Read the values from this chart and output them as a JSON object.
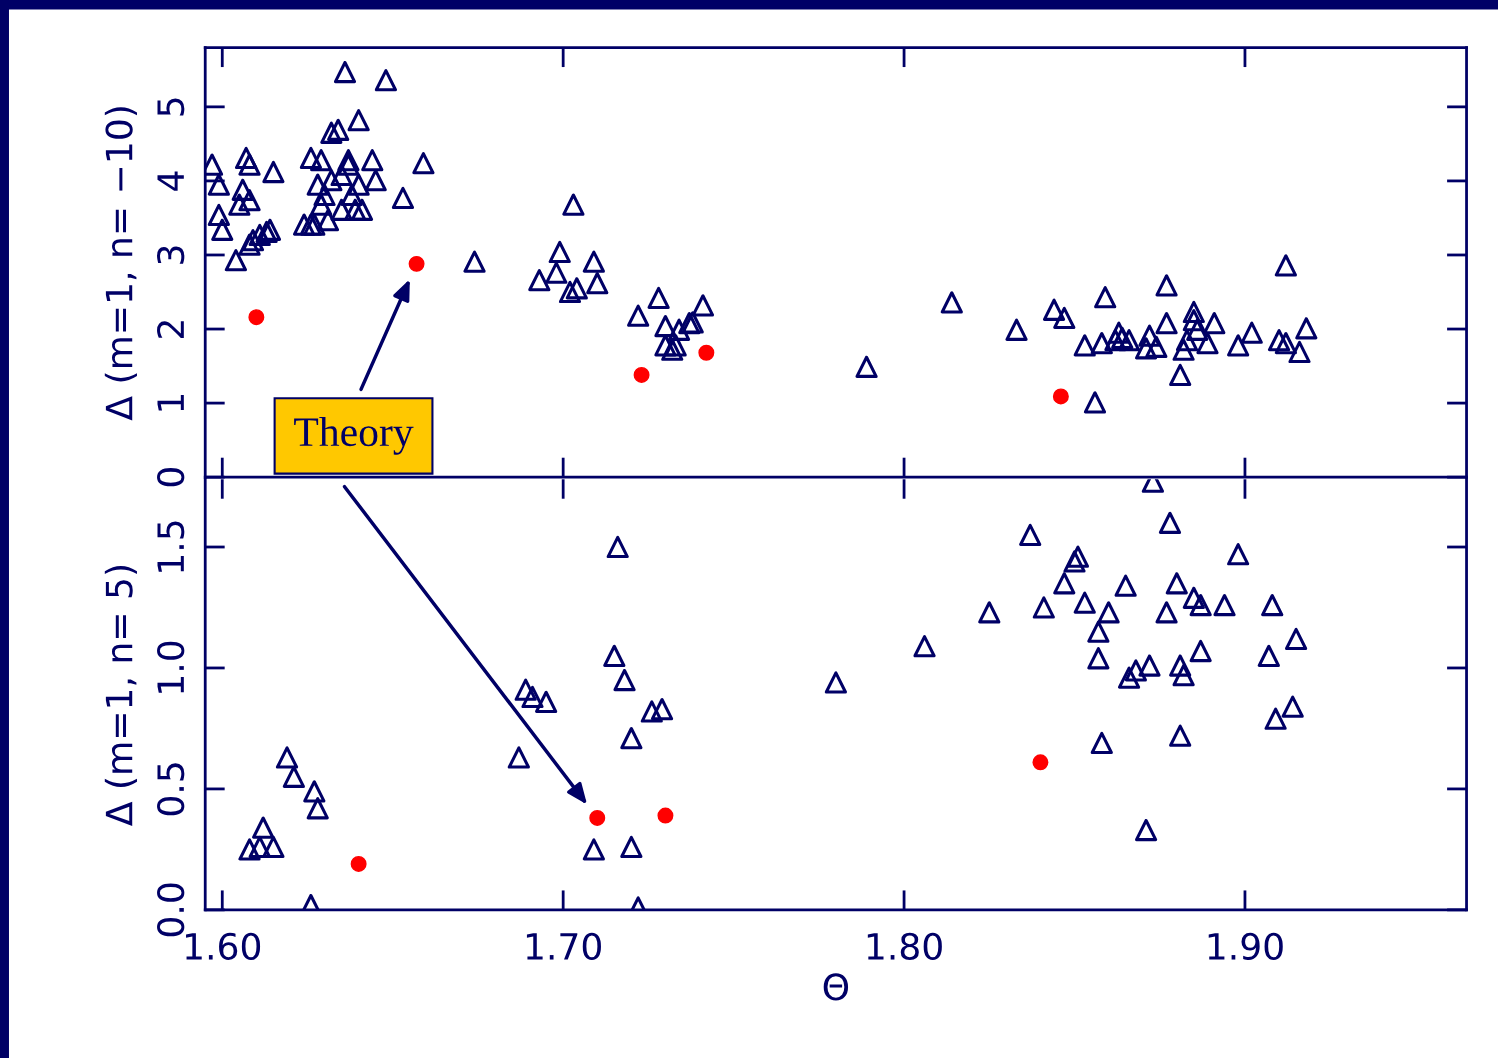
{
  "chart_data": [
    {
      "type": "scatter",
      "ylabel": "Δ (m=1, n= −10)",
      "xlim": [
        1.595,
        1.965
      ],
      "xticks": [
        {
          "value": 1.6,
          "label": null
        },
        {
          "value": 1.7,
          "label": null
        },
        {
          "value": 1.8,
          "label": null
        },
        {
          "value": 1.9,
          "label": null
        }
      ],
      "ylim": [
        0,
        5.8
      ],
      "yticks": [
        0,
        1,
        2,
        3,
        4,
        5
      ],
      "tick_labels": "y",
      "grid": false,
      "legend": false,
      "annotations": [
        "Theory"
      ],
      "series": [
        {
          "marker": "triangle",
          "color": "#000066",
          "x": [
            1.597,
            1.599,
            1.6,
            1.599,
            1.604,
            1.606,
            1.607,
            1.608,
            1.605,
            1.608,
            1.609,
            1.611,
            1.613,
            1.614,
            1.615,
            1.608,
            1.626,
            1.627,
            1.628,
            1.629,
            1.629,
            1.63,
            1.631,
            1.632,
            1.632,
            1.634,
            1.635,
            1.635,
            1.637,
            1.637,
            1.638,
            1.639,
            1.64,
            1.641,
            1.636,
            1.64,
            1.644,
            1.645,
            1.648,
            1.653,
            1.659,
            1.626,
            1.624,
            1.674,
            1.693,
            1.699,
            1.698,
            1.702,
            1.703,
            1.704,
            1.709,
            1.71,
            1.722,
            1.728,
            1.73,
            1.73,
            1.732,
            1.733,
            1.734,
            1.737,
            1.738,
            1.741,
            1.789,
            1.814,
            1.833,
            1.844,
            1.847,
            1.853,
            1.856,
            1.858,
            1.859,
            1.862,
            1.863,
            1.864,
            1.866,
            1.871,
            1.872,
            1.874,
            1.877,
            1.877,
            1.881,
            1.882,
            1.883,
            1.885,
            1.885,
            1.886,
            1.889,
            1.891,
            1.898,
            1.902,
            1.91,
            1.912,
            1.912,
            1.916,
            1.918
          ],
          "values": [
            4.22,
            3.95,
            3.34,
            3.54,
            2.93,
            3.88,
            4.31,
            4.22,
            3.68,
            3.74,
            3.2,
            3.27,
            3.31,
            3.34,
            4.12,
            3.14,
            4.31,
            3.41,
            3.95,
            3.68,
            4.28,
            3.81,
            3.47,
            4.01,
            4.65,
            4.69,
            3.61,
            4.08,
            4.22,
            4.28,
            3.81,
            3.61,
            4.82,
            3.61,
            5.47,
            3.95,
            4.28,
            4.01,
            5.36,
            3.77,
            4.24,
            3.41,
            3.41,
            2.91,
            2.66,
            3.04,
            2.76,
            2.5,
            3.68,
            2.55,
            2.91,
            2.62,
            2.18,
            2.42,
            2.04,
            1.78,
            1.72,
            1.78,
            1.99,
            2.08,
            2.09,
            2.32,
            1.49,
            2.36,
            1.99,
            2.26,
            2.15,
            1.78,
            1.01,
            1.81,
            2.43,
            1.85,
            1.95,
            1.88,
            1.85,
            1.74,
            1.91,
            1.76,
            2.08,
            2.59,
            1.38,
            1.72,
            1.85,
            2.23,
            2.12,
            1.99,
            1.81,
            2.08,
            1.78,
            1.95,
            1.85,
            1.81,
            2.86,
            1.69,
            2.01
          ]
        },
        {
          "marker": "circle",
          "color": "#ff0000",
          "x": [
            1.61,
            1.657,
            1.723,
            1.742,
            1.846
          ],
          "values": [
            2.16,
            2.88,
            1.38,
            1.68,
            1.09
          ]
        }
      ]
    },
    {
      "type": "scatter",
      "xlabel": "Θ",
      "ylabel": "Δ (m=1, n= 5)",
      "xlim": [
        1.595,
        1.965
      ],
      "xticks": [
        {
          "value": 1.6,
          "label": "1.60"
        },
        {
          "value": 1.7,
          "label": "1.70"
        },
        {
          "value": 1.8,
          "label": "1.80"
        },
        {
          "value": 1.9,
          "label": "1.90"
        }
      ],
      "ylim": [
        0,
        1.78
      ],
      "yticks": [
        {
          "value": 0,
          "label": "0.0"
        },
        {
          "value": 0.5,
          "label": "0.5"
        },
        {
          "value": 1.0,
          "label": "1.0"
        },
        {
          "value": 1.5,
          "label": "1.5"
        }
      ],
      "grid": false,
      "legend": false,
      "series": [
        {
          "marker": "triangle",
          "color": "#000066",
          "x": [
            1.608,
            1.612,
            1.611,
            1.615,
            1.619,
            1.621,
            1.627,
            1.628,
            1.626,
            1.687,
            1.689,
            1.691,
            1.695,
            1.709,
            1.715,
            1.716,
            1.718,
            1.72,
            1.72,
            1.722,
            1.726,
            1.729,
            1.78,
            1.806,
            1.825,
            1.837,
            1.841,
            1.847,
            1.85,
            1.851,
            1.853,
            1.857,
            1.857,
            1.858,
            1.86,
            1.865,
            1.866,
            1.868,
            1.872,
            1.871,
            1.873,
            1.877,
            1.878,
            1.88,
            1.881,
            1.881,
            1.882,
            1.885,
            1.887,
            1.887,
            1.894,
            1.898,
            1.907,
            1.908,
            1.909,
            1.914,
            1.915
          ],
          "values": [
            0.25,
            0.34,
            0.26,
            0.26,
            0.63,
            0.55,
            0.49,
            0.42,
            0.02,
            0.63,
            0.91,
            0.88,
            0.86,
            0.25,
            1.05,
            1.5,
            0.95,
            0.71,
            0.26,
            0.01,
            0.82,
            0.83,
            0.94,
            1.09,
            1.23,
            1.55,
            1.25,
            1.35,
            1.44,
            1.46,
            1.27,
            1.15,
            1.04,
            0.69,
            1.23,
            1.34,
            0.96,
            0.99,
            1.01,
            0.33,
            1.77,
            1.23,
            1.6,
            1.35,
            1.01,
            0.72,
            0.97,
            1.29,
            1.07,
            1.26,
            1.26,
            1.47,
            1.05,
            1.26,
            0.79,
            0.84,
            1.12
          ]
        },
        {
          "marker": "circle",
          "color": "#ff0000",
          "x": [
            1.64,
            1.71,
            1.73,
            1.84
          ],
          "values": [
            0.19,
            0.38,
            0.39,
            0.61
          ]
        }
      ]
    }
  ]
}
